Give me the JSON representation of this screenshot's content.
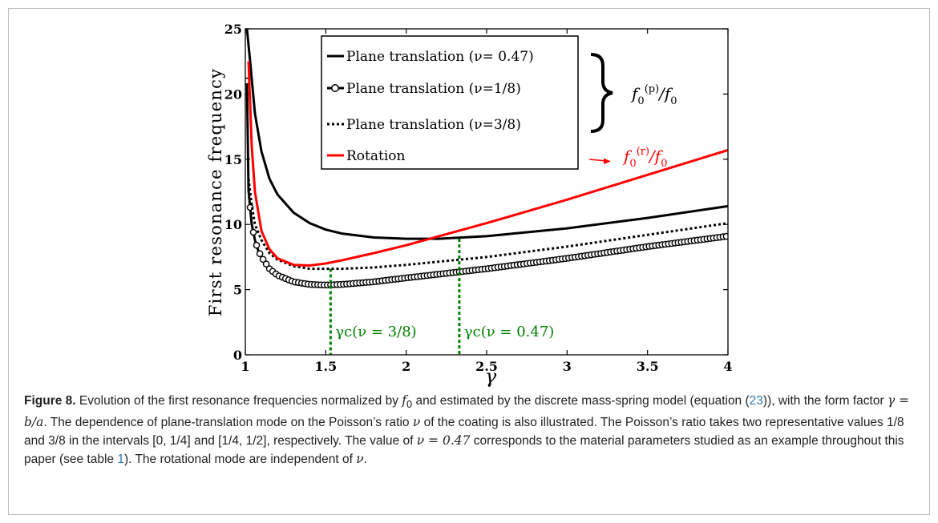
{
  "chart_data": {
    "type": "line",
    "title": "",
    "xlabel": "γ",
    "ylabel": "First resonance frequency",
    "xlim": [
      1,
      4
    ],
    "ylim": [
      0,
      25
    ],
    "xticks": [
      "1",
      "1.5",
      "2",
      "2.5",
      "3",
      "3.5",
      "4"
    ],
    "yticks": [
      "0",
      "5",
      "10",
      "15",
      "20",
      "25"
    ],
    "grid": false,
    "legend_position": "top-center",
    "series": [
      {
        "name": "Plane translation (ν= 0.47)",
        "color": "#000000",
        "style": "solid",
        "x": [
          1.01,
          1.03,
          1.06,
          1.1,
          1.15,
          1.2,
          1.3,
          1.4,
          1.5,
          1.6,
          1.8,
          2.0,
          2.2,
          2.5,
          3.0,
          3.5,
          4.0
        ],
        "y": [
          25.0,
          22.5,
          18.5,
          15.6,
          13.5,
          12.3,
          10.9,
          10.1,
          9.6,
          9.3,
          9.0,
          8.9,
          8.9,
          9.1,
          9.7,
          10.5,
          11.4
        ]
      },
      {
        "name": "Plane translation (ν=1/8)",
        "color": "#000000",
        "style": "solid-circle-markers",
        "x": [
          1.01,
          1.02,
          1.04,
          1.06,
          1.08,
          1.1,
          1.15,
          1.2,
          1.3,
          1.4,
          1.5,
          1.6,
          1.8,
          2.0,
          2.5,
          3.0,
          3.5,
          4.0
        ],
        "y": [
          21.0,
          12.6,
          10.0,
          8.8,
          8.0,
          7.5,
          6.6,
          6.1,
          5.6,
          5.4,
          5.35,
          5.4,
          5.6,
          5.9,
          6.6,
          7.4,
          8.3,
          9.1
        ]
      },
      {
        "name": "Plane translation (ν=3/8)",
        "color": "#000000",
        "style": "dotted",
        "x": [
          1.02,
          1.04,
          1.06,
          1.1,
          1.15,
          1.2,
          1.3,
          1.4,
          1.5,
          1.6,
          1.8,
          2.0,
          2.5,
          3.0,
          3.5,
          4.0
        ],
        "y": [
          13.5,
          11.5,
          10.0,
          8.8,
          7.8,
          7.3,
          6.8,
          6.6,
          6.6,
          6.6,
          6.7,
          6.9,
          7.5,
          8.3,
          9.2,
          10.1
        ]
      },
      {
        "name": "Rotation",
        "color": "#ff0000",
        "style": "solid",
        "x": [
          1.02,
          1.04,
          1.06,
          1.1,
          1.15,
          1.2,
          1.3,
          1.4,
          1.5,
          1.6,
          1.8,
          2.0,
          2.5,
          3.0,
          3.5,
          4.0
        ],
        "y": [
          22.5,
          16.0,
          12.5,
          9.5,
          8.1,
          7.4,
          6.9,
          6.85,
          7.0,
          7.25,
          7.8,
          8.4,
          10.1,
          11.9,
          13.8,
          15.7
        ]
      }
    ],
    "vertical_markers": [
      {
        "x": 1.53,
        "y": 6.6,
        "label": "γc(ν = 3/8)",
        "color": "#008000"
      },
      {
        "x": 2.33,
        "y": 8.9,
        "label": "γc(ν = 0.47)",
        "color": "#008000"
      }
    ],
    "annotations": {
      "plane_ratio": "f0(p)/f0",
      "rotation_ratio": "f0(r)/f0",
      "rotation_color": "#ff0000",
      "green_color": "#008000"
    }
  },
  "caption": {
    "label": "Figure 8.",
    "t1": " Evolution of the first resonance frequencies normalized by ",
    "f0": "f",
    "f0_sub": "0",
    "t2": " and estimated by the discrete mass-spring model (equation (",
    "ref1": "23",
    "t3": ")), with the form factor ",
    "math1": "γ = b/a",
    "t4": ". The dependence of plane-translation mode on the Poisson’s ratio ",
    "nu1": "ν",
    "t5": " of the coating is also illustrated. The Poisson’s ratio takes two representative values 1/8 and 3/8 in the intervals [0, 1/4] and [1/4, 1/2], respectively. The value of ",
    "math2": "ν = 0.47",
    "t6": " corresponds to the material parameters studied as an example throughout this paper (see table ",
    "ref2": "1",
    "t7": "). The rotational mode are independent of ",
    "nu2": "ν",
    "t8": "."
  }
}
